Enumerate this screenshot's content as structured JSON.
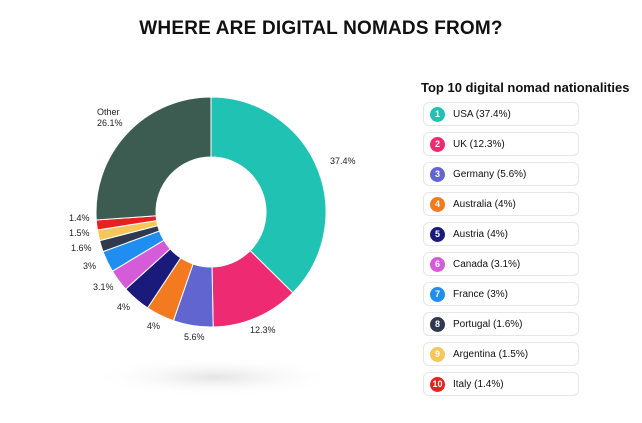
{
  "title": "WHERE ARE DIGITAL NOMADS FROM?",
  "legend_title": "Top 10 digital nomad nationalities",
  "chart_data": {
    "type": "pie",
    "variant": "donut",
    "legend_position": "right",
    "slices": [
      {
        "label": "USA",
        "value": 37.4,
        "value_label": "37.4%",
        "legend": "USA (37.4%)",
        "rank": "1",
        "color": "#20c3b3"
      },
      {
        "label": "UK",
        "value": 12.3,
        "value_label": "12.3%",
        "legend": "UK (12.3%)",
        "rank": "2",
        "color": "#ee2a72"
      },
      {
        "label": "Germany",
        "value": 5.6,
        "value_label": "5.6%",
        "legend": "Germany (5.6%)",
        "rank": "3",
        "color": "#6065cf"
      },
      {
        "label": "Australia",
        "value": 4,
        "value_label": "4%",
        "legend": "Australia (4%)",
        "rank": "4",
        "color": "#f37a1f"
      },
      {
        "label": "Austria",
        "value": 4,
        "value_label": "4%",
        "legend": "Austria (4%)",
        "rank": "5",
        "color": "#1a1a7a"
      },
      {
        "label": "Canada",
        "value": 3.1,
        "value_label": "3.1%",
        "legend": "Canada (3.1%)",
        "rank": "6",
        "color": "#d65bd8"
      },
      {
        "label": "France",
        "value": 3,
        "value_label": "3%",
        "legend": "France (3%)",
        "rank": "7",
        "color": "#1f8ef0"
      },
      {
        "label": "Portugal",
        "value": 1.6,
        "value_label": "1.6%",
        "legend": "Portugal (1.6%)",
        "rank": "8",
        "color": "#2f3a4f"
      },
      {
        "label": "Argentina",
        "value": 1.5,
        "value_label": "1.5%",
        "legend": "Argentina (1.5%)",
        "rank": "9",
        "color": "#f7c65a"
      },
      {
        "label": "Italy",
        "value": 1.4,
        "value_label": "1.4%",
        "legend": "Italy (1.4%)",
        "rank": "10",
        "color": "#e8201f"
      },
      {
        "label": "Other",
        "value": 26.1,
        "value_label": "26.1%",
        "legend": "",
        "rank": "",
        "color": "#3c5c52"
      }
    ]
  }
}
